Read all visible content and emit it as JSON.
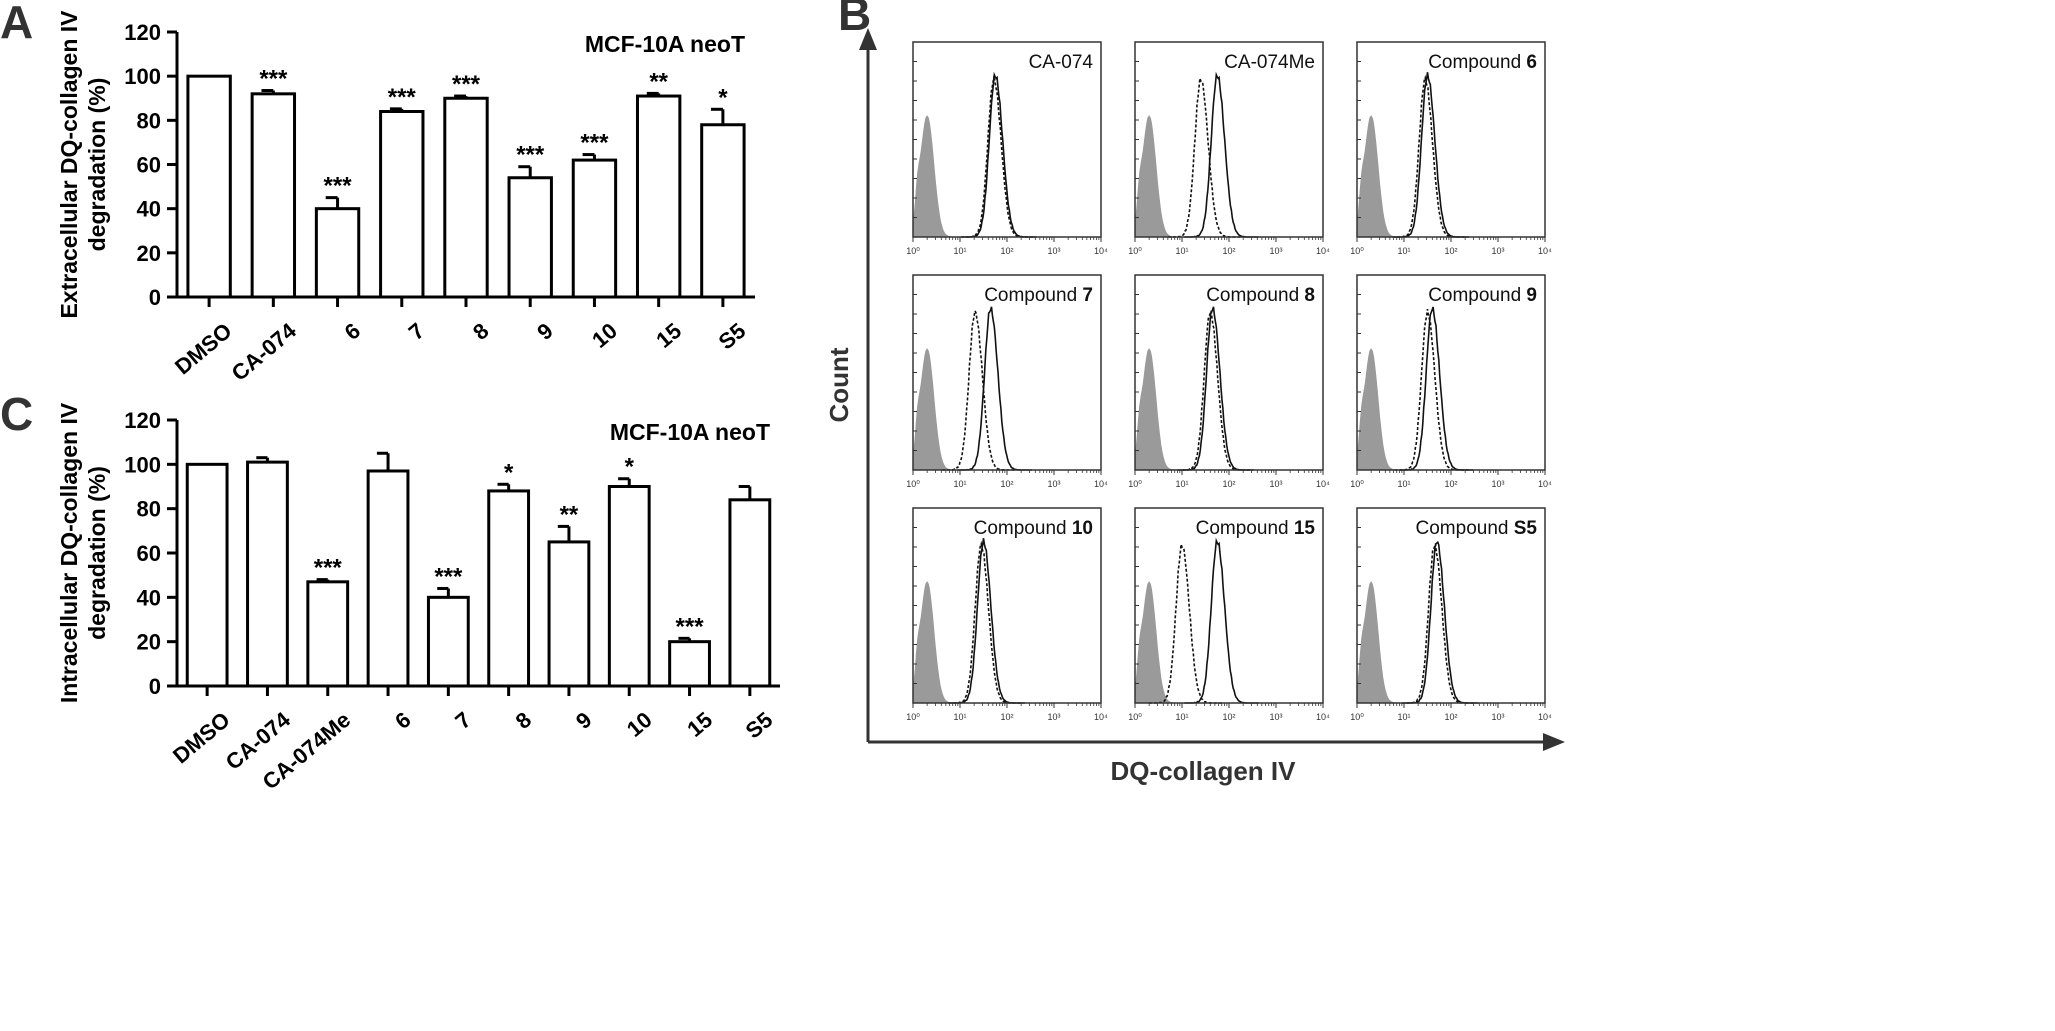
{
  "chart_data": [
    {
      "panel": "A",
      "type": "bar",
      "title": "MCF-10A neoT",
      "ylabel": [
        "Extracellular DQ-collagen  IV",
        "degradation (%)"
      ],
      "xlabel": "",
      "ylim": [
        0,
        120
      ],
      "yticks": [
        0,
        20,
        40,
        60,
        80,
        100,
        120
      ],
      "grid": false,
      "categories": [
        "DMSO",
        "CA-074",
        "6",
        "7",
        "8",
        "9",
        "10",
        "15",
        "S5"
      ],
      "values": [
        100,
        92,
        40,
        84,
        90,
        54,
        62,
        91,
        78
      ],
      "errors": [
        0,
        1.5,
        5,
        1.2,
        1,
        5,
        2.5,
        1.2,
        7
      ],
      "significance": [
        "",
        "***",
        "***",
        "***",
        "***",
        "***",
        "***",
        "**",
        "*"
      ]
    },
    {
      "panel": "C",
      "type": "bar",
      "title": "MCF-10A neoT",
      "ylabel": [
        "Intracellular DQ-collagen  IV",
        "degradation (%)"
      ],
      "xlabel": "",
      "ylim": [
        0,
        120
      ],
      "yticks": [
        0,
        20,
        40,
        60,
        80,
        100,
        120
      ],
      "grid": false,
      "categories": [
        "DMSO",
        "CA-074",
        "CA-074Me",
        "6",
        "7",
        "8",
        "9",
        "10",
        "15",
        "S5"
      ],
      "values": [
        100,
        101,
        47,
        97,
        40,
        88,
        65,
        90,
        20,
        84
      ],
      "errors": [
        0,
        2,
        1,
        8,
        4,
        3,
        7,
        3.5,
        1.5,
        6
      ],
      "significance": [
        "",
        "",
        "***",
        "",
        "***",
        "*",
        "**",
        "*",
        "***",
        ""
      ]
    },
    {
      "panel": "B",
      "type": "histogram-grid",
      "xlabel": "DQ-collagen IV",
      "ylabel": "Count",
      "x_scale": "log",
      "xlim": [
        1,
        10000
      ],
      "tick_labels": [
        "10⁰",
        "10¹",
        "10²",
        "10³",
        "10⁴"
      ],
      "panels": [
        {
          "label": "CA-074",
          "bold": "",
          "solid_peak": 1.75,
          "dotted_peak": 1.72
        },
        {
          "label": "CA-074Me",
          "bold": "",
          "solid_peak": 1.75,
          "dotted_peak": 1.4
        },
        {
          "label": "Compound ",
          "bold": "6",
          "solid_peak": 1.5,
          "dotted_peak": 1.45
        },
        {
          "label": "Compound ",
          "bold": "7",
          "solid_peak": 1.65,
          "dotted_peak": 1.32
        },
        {
          "label": "Compound ",
          "bold": "8",
          "solid_peak": 1.65,
          "dotted_peak": 1.6
        },
        {
          "label": "Compound ",
          "bold": "9",
          "solid_peak": 1.6,
          "dotted_peak": 1.5
        },
        {
          "label": "Compound ",
          "bold": "10",
          "solid_peak": 1.5,
          "dotted_peak": 1.45
        },
        {
          "label": "Compound ",
          "bold": "15",
          "solid_peak": 1.75,
          "dotted_peak": 1.0
        },
        {
          "label": "Compound ",
          "bold": "S5",
          "solid_peak": 1.7,
          "dotted_peak": 1.65
        }
      ]
    }
  ],
  "panel_letters": [
    "A",
    "B",
    "C"
  ]
}
